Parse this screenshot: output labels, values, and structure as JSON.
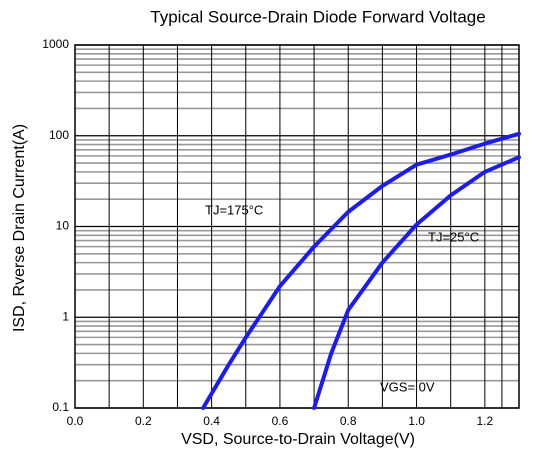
{
  "chart_data": {
    "type": "line",
    "title": "Typical Source-Drain Diode Forward Voltage",
    "xlabel": "VSD, Source-to-Drain Voltage(V)",
    "ylabel": "ISD, Rverse Drain Current(A)",
    "xlim": [
      0,
      1.3
    ],
    "xticks": [
      {
        "value": 0,
        "label": "0.0"
      },
      0.2,
      0.4,
      0.6,
      0.8,
      {
        "value": 1,
        "label": "1.0"
      },
      1.2
    ],
    "ylim": [
      0.1,
      1000
    ],
    "yticks": [
      0.1,
      1,
      10,
      100,
      1000
    ],
    "log_y": true,
    "grid": true,
    "series": [
      {
        "name": "TJ=175°C",
        "color": "#1a1aff",
        "x": [
          0.375,
          0.45,
          0.5,
          0.6,
          0.7,
          0.8,
          0.9,
          1.0,
          1.1,
          1.2,
          1.3
        ],
        "values": [
          0.1,
          0.3,
          0.6,
          2.2,
          6,
          14.5,
          28,
          48,
          62,
          82,
          105
        ]
      },
      {
        "name": "TJ=25°C",
        "color": "#1a1aff",
        "x": [
          0.7,
          0.75,
          0.8,
          0.9,
          1.0,
          1.1,
          1.2,
          1.3
        ],
        "values": [
          0.1,
          0.4,
          1.2,
          4,
          10.5,
          22,
          40,
          58
        ]
      }
    ],
    "annotations": [
      "VGS= 0V"
    ]
  }
}
